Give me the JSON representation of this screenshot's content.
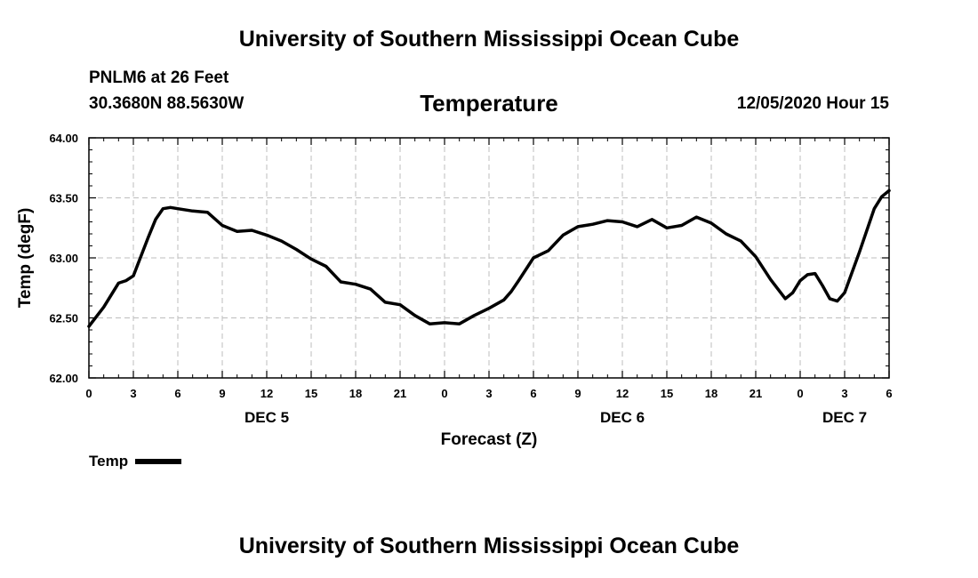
{
  "header": {
    "title": "University of Southern Mississippi Ocean Cube",
    "station": "PNLM6 at 26 Feet",
    "coords": "30.3680N 88.5630W",
    "datetime": "12/05/2020 Hour 15"
  },
  "footer": {
    "title": "University of Southern Mississippi Ocean Cube"
  },
  "legend": {
    "label": "Temp"
  },
  "chart_data": {
    "type": "line",
    "title": "Temperature",
    "xlabel": "Forecast (Z)",
    "ylabel": "Temp (degF)",
    "ylim": [
      62.0,
      64.0
    ],
    "yticks": [
      "62.00",
      "62.50",
      "63.00",
      "63.50",
      "64.00"
    ],
    "xlim": [
      0,
      54
    ],
    "xticks": [
      {
        "x": 0,
        "label": "0"
      },
      {
        "x": 3,
        "label": "3"
      },
      {
        "x": 6,
        "label": "6"
      },
      {
        "x": 9,
        "label": "9"
      },
      {
        "x": 12,
        "label": "12"
      },
      {
        "x": 15,
        "label": "15"
      },
      {
        "x": 18,
        "label": "18"
      },
      {
        "x": 21,
        "label": "21"
      },
      {
        "x": 24,
        "label": "0"
      },
      {
        "x": 27,
        "label": "3"
      },
      {
        "x": 30,
        "label": "6"
      },
      {
        "x": 33,
        "label": "9"
      },
      {
        "x": 36,
        "label": "12"
      },
      {
        "x": 39,
        "label": "15"
      },
      {
        "x": 42,
        "label": "18"
      },
      {
        "x": 45,
        "label": "21"
      },
      {
        "x": 48,
        "label": "0"
      },
      {
        "x": 51,
        "label": "3"
      },
      {
        "x": 54,
        "label": "6"
      }
    ],
    "day_labels": [
      {
        "x": 12,
        "label": "DEC 5"
      },
      {
        "x": 36,
        "label": "DEC 6"
      },
      {
        "x": 51,
        "label": "DEC 7"
      }
    ],
    "grid": true,
    "legend_position": "bottom-left",
    "series": [
      {
        "name": "Temp",
        "x": [
          0,
          1,
          2,
          2.5,
          3,
          4,
          4.5,
          5,
          5.5,
          6,
          7,
          8,
          9,
          10,
          11,
          12,
          13,
          14,
          15,
          16,
          17,
          18,
          19,
          20,
          21,
          22,
          23,
          24,
          25,
          26,
          27,
          28,
          28.5,
          29,
          30,
          31,
          32,
          33,
          34,
          35,
          36,
          37,
          38,
          39,
          40,
          41,
          42,
          43,
          44,
          45,
          46,
          47,
          47.5,
          48,
          48.5,
          49,
          49.5,
          50,
          50.5,
          51,
          52,
          53,
          53.5,
          54
        ],
        "values": [
          62.43,
          62.59,
          62.79,
          62.81,
          62.85,
          63.17,
          63.32,
          63.41,
          63.42,
          63.41,
          63.39,
          63.38,
          63.27,
          63.22,
          63.23,
          63.19,
          63.14,
          63.07,
          62.99,
          62.93,
          62.8,
          62.78,
          62.74,
          62.63,
          62.61,
          62.52,
          62.45,
          62.46,
          62.45,
          62.52,
          62.58,
          62.65,
          62.72,
          62.81,
          63.0,
          63.06,
          63.19,
          63.26,
          63.28,
          63.31,
          63.3,
          63.26,
          63.32,
          63.25,
          63.27,
          63.34,
          63.29,
          63.2,
          63.14,
          63.01,
          62.82,
          62.66,
          62.71,
          62.81,
          62.86,
          62.87,
          62.77,
          62.66,
          62.64,
          62.71,
          63.05,
          63.41,
          63.51,
          63.56
        ]
      }
    ]
  }
}
